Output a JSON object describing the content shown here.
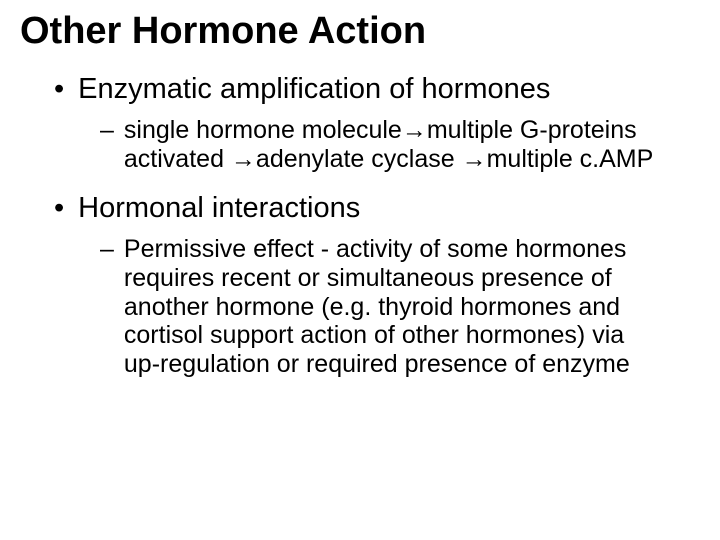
{
  "title": {
    "text": "Other Hormone Action",
    "fontsize": 38,
    "color": "#000000"
  },
  "bullets": {
    "l1_fontsize": 29,
    "l2_fontsize": 25,
    "l1_marker": "•",
    "l2_marker": "–",
    "arrow": "→",
    "items": [
      {
        "level": 1,
        "text": "Enzymatic amplification of hormones"
      },
      {
        "level": 2,
        "text": " single hormone molecule→multiple G-proteins activated →adenylate cyclase →multiple c.AMP"
      },
      {
        "level": 1,
        "text": "Hormonal interactions"
      },
      {
        "level": 2,
        "text": "Permissive effect - activity of some hormones requires recent or simultaneous presence of another hormone (e.g. thyroid hormones and cortisol support action of other hormones) via up-regulation or required presence of enzyme"
      }
    ]
  },
  "background_color": "#ffffff",
  "text_color": "#000000"
}
